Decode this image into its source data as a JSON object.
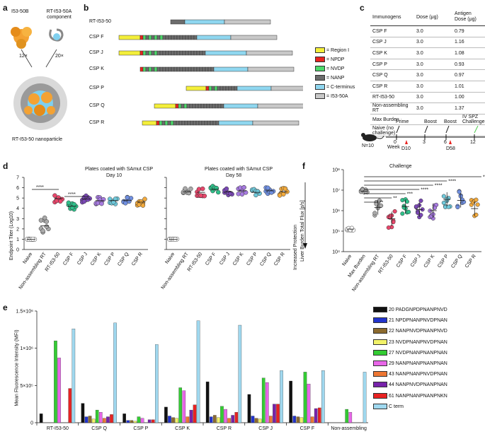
{
  "panels": {
    "a": "a",
    "b": "b",
    "c": "c",
    "d": "d",
    "e": "e",
    "f": "f"
  },
  "panel_a": {
    "comp1": "I53-50B",
    "comp2": "RT-I53-50A component",
    "mult1": "12×",
    "mult2": "20×",
    "nanoparticle": "RT-I53-50 nanoparticle"
  },
  "panel_b": {
    "constructs": [
      {
        "name": "RT-I53-50",
        "segments": [
          "gap",
          "gap",
          "gap",
          "gap",
          "gap",
          "gap",
          "gap",
          "gap",
          "gap",
          "gap",
          "gap",
          "gap",
          "gap",
          "gap",
          "gap",
          "gap",
          "gap",
          "gap",
          "gap",
          "gap",
          "gap",
          "gap",
          "gap",
          "gap",
          "gap",
          "gap",
          "gap",
          "gap",
          "gap",
          "nanp",
          "nanp",
          "nanp",
          "nanp",
          "nanp",
          "nanp",
          "nanp",
          "nanp",
          "nanp",
          "nanp",
          "nanp",
          "nanp",
          "nanp",
          "nanp",
          "nanp",
          "nanp",
          "nanp",
          "nanp",
          "nanp",
          "nanp",
          "nanp",
          "nanp",
          "nanp",
          "ct",
          "i53"
        ]
      },
      {
        "name": "CSP F"
      },
      {
        "name": "CSP J"
      },
      {
        "name": "CSP K"
      },
      {
        "name": "CSP P"
      },
      {
        "name": "CSP Q"
      },
      {
        "name": "CSP R"
      }
    ],
    "legend": [
      {
        "label": "= Region I",
        "color": "#f4ef3a"
      },
      {
        "label": "= NPDP",
        "color": "#e8231f"
      },
      {
        "label": "= NVDP",
        "color": "#4cd96a"
      },
      {
        "label": "= NANP",
        "color": "#6c6c6c"
      },
      {
        "label": "= C-terminus",
        "color": "#8fd7f0"
      },
      {
        "label": "= I53-50A",
        "color": "#c8c8c8"
      }
    ]
  },
  "panel_c": {
    "headers": [
      "Immunogens",
      "Dose (μg)",
      "Antigen Dose (μg)"
    ],
    "rows": [
      [
        "CSP F",
        "3.0",
        "0.79"
      ],
      [
        "CSP J",
        "3.0",
        "1.16"
      ],
      [
        "CSP K",
        "3.0",
        "1.08"
      ],
      [
        "CSP P",
        "3.0",
        "0.93"
      ],
      [
        "CSP Q",
        "3.0",
        "0.97"
      ],
      [
        "CSP R",
        "3.0",
        "1.01"
      ],
      [
        "RT-I53-50",
        "3.0",
        "1.00"
      ],
      [
        "Non-assembling RT",
        "3.0",
        "1.37"
      ],
      [
        "Max Burden",
        "",
        ""
      ],
      [
        "Naive (no challenge)",
        "",
        ""
      ]
    ],
    "timeline": {
      "prime": "Prime",
      "boost1": "Boost",
      "boost2": "Boost",
      "challenge": "IV SPZ Challenge",
      "n": "N=10",
      "week": "Week",
      "w0": "0",
      "w3": "3",
      "w6": "6",
      "w12": "12",
      "d10": "D10",
      "d58": "D58"
    }
  },
  "panel_d": {
    "title_left": "Plates coated with SAmut CSP",
    "sub_left": "Day 10",
    "title_right": "Plates coated with SAmut CSP",
    "sub_right": "Day 58",
    "ylabel": "Endpoint Titer (Log10)",
    "sig1": "****",
    "sig2": "****"
  },
  "panel_f": {
    "title": "Challenge",
    "ylabel1": "Liver Burden Total Flux [p/s]",
    "ylabel2": "Increased Protection",
    "sig": [
      "**",
      "**",
      "***",
      "****",
      "****",
      "****",
      "***"
    ]
  },
  "panel_e": {
    "ylabel": "Mean Fluorescence Intensity (MFI)"
  },
  "chart_data": [
    {
      "type": "scatter",
      "title": "Plates coated with SAmut CSP Day 10",
      "categories": [
        "Naive",
        "Non-assembling RT",
        "RT-I53-50",
        "CSP F",
        "CSP J",
        "CSP K",
        "CSP P",
        "CSP Q",
        "CSP R"
      ],
      "means": [
        1.0,
        2.3,
        4.95,
        4.2,
        4.9,
        4.75,
        4.75,
        4.75,
        4.6
      ],
      "colors": [
        "#ffffff",
        "#a9a9a9",
        "#e8476b",
        "#2fc08a",
        "#7a48b5",
        "#a77be0",
        "#6fc9db",
        "#6f8fe0",
        "#f3aa3c"
      ],
      "ylim": [
        0,
        7
      ],
      "yticks": [
        "0",
        "1",
        "2",
        "3",
        "4",
        "5",
        "6",
        "7"
      ],
      "ylabel": "Endpoint Titer (Log10)"
    },
    {
      "type": "scatter",
      "title": "Plates coated with SAmut CSP Day 58",
      "categories": [
        "Naive",
        "Non-assembling RT",
        "RT-I53-50",
        "CSP F",
        "CSP J",
        "CSP K",
        "CSP P",
        "CSP Q",
        "CSP R"
      ],
      "means": [
        1.0,
        5.6,
        5.55,
        5.85,
        5.6,
        5.7,
        5.55,
        5.7,
        5.6
      ],
      "colors": [
        "#ffffff",
        "#a9a9a9",
        "#e8476b",
        "#2fc08a",
        "#7a48b5",
        "#a77be0",
        "#6fc9db",
        "#6f8fe0",
        "#f3aa3c"
      ],
      "ylim": [
        0,
        7
      ]
    },
    {
      "type": "scatter",
      "title": "Challenge",
      "yscale": "log",
      "categories": [
        "Naive",
        "Max Burden",
        "Non-assembling RT",
        "RT-I53-50",
        "CSP F",
        "CSP J",
        "CSP K",
        "CSP P",
        "CSP Q",
        "CSP R"
      ],
      "log_means": [
        5.1,
        6.95,
        6.15,
        5.6,
        6.2,
        6.05,
        6.0,
        6.55,
        6.5,
        6.1
      ],
      "colors": [
        "#ffffff",
        "#a9a9a9",
        "#a9a9a9",
        "#e8476b",
        "#2fc08a",
        "#7a48b5",
        "#a77be0",
        "#6fc9db",
        "#6f8fe0",
        "#f3aa3c"
      ],
      "ylim_log10": [
        4,
        8
      ],
      "yticks": [
        "10⁴",
        "10⁵",
        "10⁶",
        "10⁷",
        "10⁸"
      ]
    },
    {
      "type": "bar",
      "ylabel": "Mean Fluorescence Intensity (MFI)",
      "ylim": [
        0,
        1500000
      ],
      "yticks": [
        "0",
        "5×10⁵",
        "1×10⁶",
        "1.5×10⁶"
      ],
      "groups": [
        "RT-I53-50",
        "CSP Q",
        "CSP P",
        "CSP K",
        "CSP R",
        "CSP J",
        "CSP F",
        "Non-assembling"
      ],
      "series": [
        {
          "name": "20 PADGNPDPNANPNVD",
          "color": "#111111",
          "values": [
            120000,
            260000,
            120000,
            210000,
            550000,
            380000,
            560000,
            0
          ]
        },
        {
          "name": "21 NPDPNANPNVDPNAN",
          "color": "#2233cc",
          "values": [
            0,
            80000,
            30000,
            90000,
            80000,
            90000,
            90000,
            0
          ]
        },
        {
          "name": "22 NANPNVDPNANPNVD",
          "color": "#8c6a2e",
          "values": [
            0,
            90000,
            30000,
            70000,
            100000,
            60000,
            80000,
            0
          ]
        },
        {
          "name": "23 NVDPNANPNVDPNAN",
          "color": "#f2f26a",
          "values": [
            0,
            50000,
            20000,
            60000,
            70000,
            50000,
            70000,
            0
          ]
        },
        {
          "name": "27 NVDPNANPNANPNAN",
          "color": "#33cc33",
          "values": [
            1100000,
            170000,
            80000,
            470000,
            220000,
            600000,
            680000,
            180000
          ]
        },
        {
          "name": "29 NANPNANPNANPNAN",
          "color": "#e866e8",
          "values": [
            870000,
            140000,
            60000,
            430000,
            180000,
            540000,
            520000,
            140000
          ]
        },
        {
          "name": "43 NANPNANPNVDPNAN",
          "color": "#ee7733",
          "values": [
            0,
            60000,
            0,
            80000,
            60000,
            90000,
            80000,
            0
          ]
        },
        {
          "name": "44 NANPNVDPNANPNAN",
          "color": "#7722aa",
          "values": [
            0,
            80000,
            40000,
            170000,
            100000,
            250000,
            190000,
            0
          ]
        },
        {
          "name": "61 NANPNANPNANPNKN",
          "color": "#e82222",
          "values": [
            460000,
            110000,
            40000,
            240000,
            140000,
            250000,
            200000,
            0
          ]
        },
        {
          "name": "C term",
          "color": "#9fd8ef",
          "values": [
            1260000,
            1340000,
            1050000,
            1370000,
            1310000,
            700000,
            700000,
            680000
          ]
        }
      ]
    }
  ]
}
